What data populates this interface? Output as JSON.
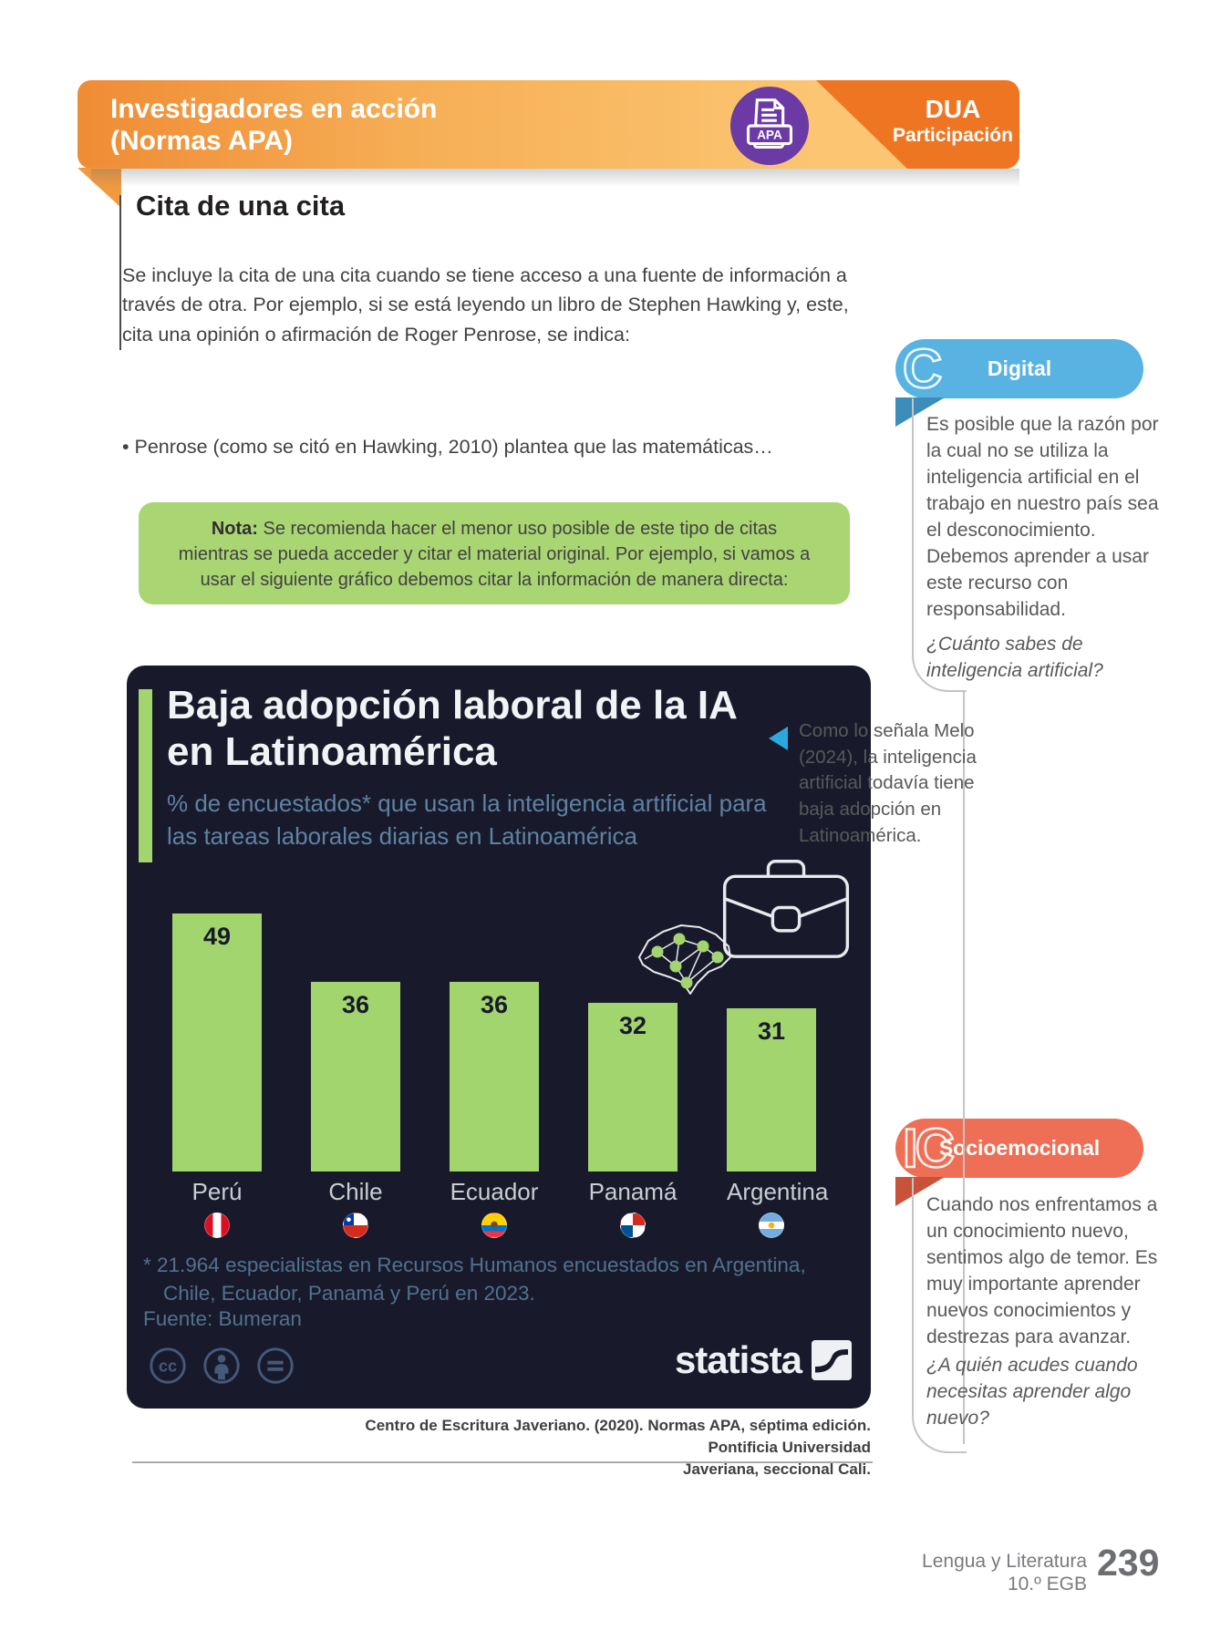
{
  "colors": {
    "banner_orange_dark": "#ee7623",
    "badge_purple": "#6b3aa4",
    "nota_green": "#a9d572",
    "chart_background": "#181a2b",
    "bar_green": "#a3d56f",
    "digital_blue": "#58b2e2",
    "socio_coral": "#ee6f55",
    "arrow_blue": "#2aa9e0"
  },
  "banner": {
    "title_lines": [
      "Investigadores en acción",
      "(Normas APA)"
    ],
    "badge_label": "APA",
    "dua": "DUA",
    "dua_sub": "Participación"
  },
  "section": {
    "heading": "Cita de una cita",
    "paragraph": "Se incluye la cita de una cita cuando se tiene acceso a una fuente de información a través de otra. Por ejemplo, si se está leyendo un libro de Stephen Hawking y, este, cita una opinión o afirmación de Roger Penrose, se indica:",
    "bullet": "• Penrose (como se citó en Hawking, 2010) plantea que las matemáticas…"
  },
  "nota": {
    "label": "Nota:",
    "text": "Se recomienda hacer el menor uso posible de este tipo de citas mientras se pueda acceder y citar el material original. Por ejemplo, si vamos a usar el siguiente gráfico debemos citar la información de manera directa:"
  },
  "chart_data": {
    "type": "bar",
    "title": "Baja adopción laboral de la IA en Latinoamérica",
    "title_lines": [
      "Baja adopción laboral de la IA",
      "en Latinoamérica"
    ],
    "subtitle": "% de encuestados* que usan la inteligencia artificial para las tareas laborales diarias en Latinoamérica",
    "subtitle_lines": [
      "% de encuestados* que usan la inteligencia artificial para",
      "las tareas laborales diarias en Latinoamérica"
    ],
    "categories": [
      "Perú",
      "Chile",
      "Ecuador",
      "Panamá",
      "Argentina"
    ],
    "values": [
      49,
      36,
      36,
      32,
      31
    ],
    "unit": "%",
    "ylim": [
      0,
      49
    ],
    "grid": false,
    "legend": "none",
    "flags": [
      "peru-flag",
      "chile-flag",
      "ecuador-flag",
      "panama-flag",
      "argentina-flag"
    ],
    "footnote_lines": [
      "* 21.964 especialistas en Recursos Humanos encuestados en Argentina,",
      "Chile, Ecuador, Panamá y Perú en 2023."
    ],
    "source": "Fuente: Bumeran",
    "brand": "statista",
    "license_icons": [
      "cc-icon",
      "attribution-icon",
      "no-derivatives-icon"
    ]
  },
  "caption": {
    "line1": "Centro de Escritura Javeriano. (2020). Normas APA, séptima edición. Pontificia Universidad",
    "line2": "Javeriana, seccional Cali."
  },
  "sidebar": {
    "digital": {
      "glyph": "C",
      "title": "Digital",
      "body": "Es posible que la razón por la cual no se utiliza la inteligencia artificial en el trabajo en nuestro país sea el desconocimiento. Debemos aprender a usar este recurso con responsabilidad.",
      "question": "¿Cuánto sabes de inteligencia artificial?"
    },
    "annotation": {
      "text": "Como lo señala Melo (2024), la inteligencia artificial todavía tiene baja adopción en Latinoamérica."
    },
    "socioemocional": {
      "glyph": "IC",
      "title": "Socioemocional",
      "body": "Cuando nos enfrentamos a un conocimiento nuevo, sentimos algo de temor. Es muy importante aprender nuevos conocimientos y destrezas para avanzar.",
      "question": "¿A quién acudes cuando necesitas aprender algo nuevo?"
    }
  },
  "footer": {
    "course": "Lengua y Literatura",
    "grade": "10.º EGB",
    "page": "239"
  }
}
